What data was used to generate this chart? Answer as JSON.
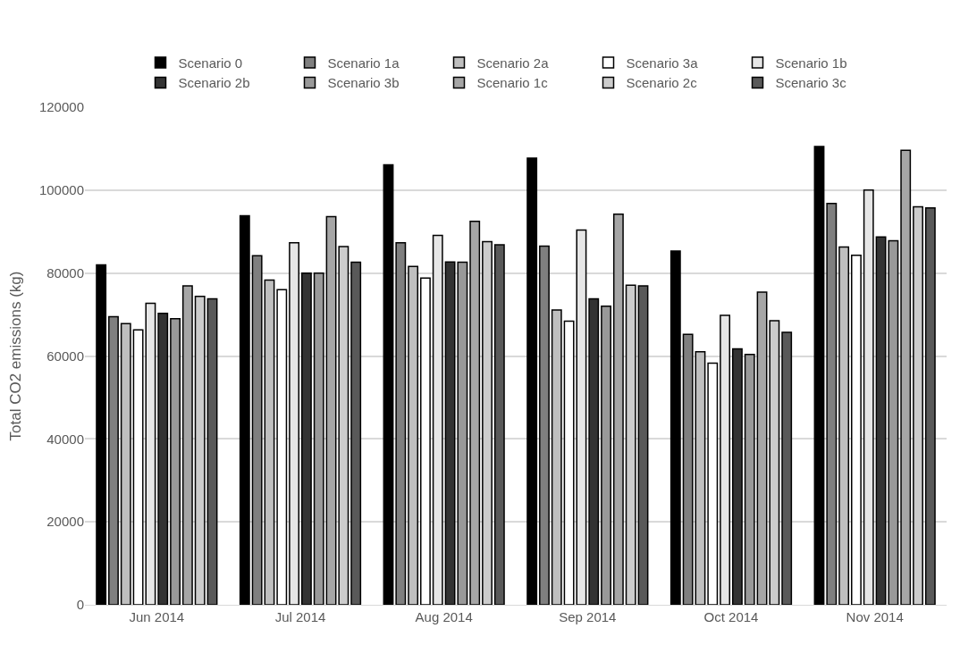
{
  "chart_data": {
    "type": "bar",
    "ylabel": "Total CO2 emissions (kg)",
    "categories": [
      "Jun 2014",
      "Jul 2014",
      "Aug 2014",
      "Sep 2014",
      "Oct 2014",
      "Nov 2014"
    ],
    "ylim": [
      0,
      120000
    ],
    "yticks": [
      0,
      20000,
      40000,
      60000,
      80000,
      100000,
      120000
    ],
    "grid": "y",
    "legend": "top",
    "series": [
      {
        "name": "Scenario 0",
        "color": "#000000",
        "values": [
          82000,
          93800,
          106100,
          107700,
          85300,
          110500
        ]
      },
      {
        "name": "Scenario 1a",
        "color": "#7f7f7f",
        "values": [
          69500,
          84200,
          87300,
          86500,
          65200,
          96800
        ]
      },
      {
        "name": "Scenario 2a",
        "color": "#bfbfbf",
        "values": [
          67800,
          78300,
          81600,
          71100,
          61000,
          86300
        ]
      },
      {
        "name": "Scenario 3a",
        "color": "#ffffff",
        "values": [
          66300,
          76000,
          78800,
          68400,
          58300,
          84300
        ]
      },
      {
        "name": "Scenario 1b",
        "color": "#e6e6e6",
        "values": [
          72700,
          87300,
          89100,
          90400,
          69800,
          100000
        ]
      },
      {
        "name": "Scenario 2b",
        "color": "#333333",
        "values": [
          70300,
          80000,
          82700,
          73800,
          61700,
          88700
        ]
      },
      {
        "name": "Scenario 3b",
        "color": "#999999",
        "values": [
          69000,
          80000,
          82600,
          72000,
          60400,
          87800
        ]
      },
      {
        "name": "Scenario 1c",
        "color": "#a6a6a6",
        "values": [
          76900,
          93600,
          92500,
          94200,
          75400,
          109600
        ]
      },
      {
        "name": "Scenario 2c",
        "color": "#cccccc",
        "values": [
          74400,
          86400,
          87600,
          77100,
          68500,
          96000
        ]
      },
      {
        "name": "Scenario 3c",
        "color": "#595959",
        "values": [
          73800,
          82600,
          86800,
          76900,
          65700,
          95700
        ]
      }
    ]
  }
}
